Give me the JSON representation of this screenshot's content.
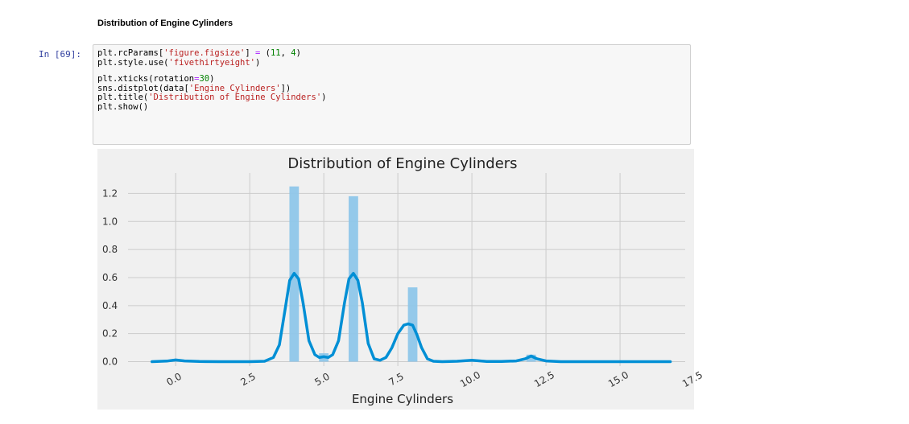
{
  "notebook": {
    "markdown_heading": "Distribution of Engine Cylinders",
    "prompt": "In [69]:",
    "code_lines": [
      [
        {
          "t": "plt.rcParams["
        },
        {
          "t": "'figure.figsize'",
          "c": "s"
        },
        {
          "t": "] "
        },
        {
          "t": "=",
          "c": "o"
        },
        {
          "t": " ("
        },
        {
          "t": "11",
          "c": "n"
        },
        {
          "t": ", "
        },
        {
          "t": "4",
          "c": "n"
        },
        {
          "t": ")"
        }
      ],
      [
        {
          "t": "plt.style.use("
        },
        {
          "t": "'fivethirtyeight'",
          "c": "s"
        },
        {
          "t": ")"
        }
      ],
      [],
      [
        {
          "t": "plt.xticks(rotation"
        },
        {
          "t": "=",
          "c": "o"
        },
        {
          "t": "30",
          "c": "n"
        },
        {
          "t": ")"
        }
      ],
      [
        {
          "t": "sns.distplot(data["
        },
        {
          "t": "'Engine Cylinders'",
          "c": "s"
        },
        {
          "t": "])"
        }
      ],
      [
        {
          "t": "plt.title("
        },
        {
          "t": "'Distribution of Engine Cylinders'",
          "c": "s"
        },
        {
          "t": ")"
        }
      ],
      [
        {
          "t": "plt.show()"
        }
      ]
    ]
  },
  "colors": {
    "prompt": "#303f9f",
    "code_bg": "#f7f7f7",
    "plot_bg": "#f0f0f0",
    "grid": "#cbcbcb",
    "bar": "#8ec6e9",
    "kde_line": "#008fd5"
  },
  "chart_data": {
    "type": "bar",
    "title": "Distribution of Engine Cylinders",
    "xlabel": "Engine Cylinders",
    "ylabel": "",
    "xlim": [
      -1.5,
      17.2
    ],
    "ylim": [
      -0.02,
      1.3
    ],
    "xticks": [
      0.0,
      2.5,
      5.0,
      7.5,
      10.0,
      12.5,
      15.0,
      17.5
    ],
    "xtick_labels": [
      "0.0",
      "2.5",
      "5.0",
      "7.5",
      "10.0",
      "12.5",
      "15.0",
      "17.5"
    ],
    "xtick_rotation": 30,
    "yticks": [
      0.0,
      0.2,
      0.4,
      0.6,
      0.8,
      1.0,
      1.2
    ],
    "ytick_labels": [
      "0.0",
      "0.2",
      "0.4",
      "0.6",
      "0.8",
      "1.0",
      "1.2"
    ],
    "grid": true,
    "histogram": {
      "bin_width": 0.32,
      "bins": [
        {
          "x": 0.0,
          "value": 0.005
        },
        {
          "x": 4.0,
          "value": 1.25
        },
        {
          "x": 5.0,
          "value": 0.06
        },
        {
          "x": 6.0,
          "value": 1.18
        },
        {
          "x": 8.0,
          "value": 0.53
        },
        {
          "x": 10.0,
          "value": 0.005
        },
        {
          "x": 12.0,
          "value": 0.05
        },
        {
          "x": 16.0,
          "value": 0.003
        }
      ]
    },
    "kde": {
      "x": [
        -0.8,
        -0.3,
        0.0,
        0.3,
        0.8,
        1.5,
        2.5,
        3.0,
        3.3,
        3.5,
        3.7,
        3.85,
        4.0,
        4.15,
        4.3,
        4.5,
        4.7,
        4.85,
        5.0,
        5.15,
        5.3,
        5.5,
        5.7,
        5.85,
        6.0,
        6.15,
        6.3,
        6.5,
        6.7,
        6.9,
        7.1,
        7.3,
        7.5,
        7.7,
        7.85,
        8.0,
        8.15,
        8.3,
        8.5,
        8.7,
        9.0,
        9.5,
        10.0,
        10.5,
        11.0,
        11.5,
        11.8,
        12.0,
        12.2,
        12.5,
        13.0,
        14.0,
        15.0,
        16.0,
        16.7
      ],
      "y": [
        0.0,
        0.004,
        0.012,
        0.005,
        0.001,
        0.0,
        0.0,
        0.003,
        0.03,
        0.12,
        0.38,
        0.58,
        0.63,
        0.59,
        0.42,
        0.15,
        0.05,
        0.03,
        0.035,
        0.03,
        0.05,
        0.15,
        0.42,
        0.59,
        0.63,
        0.58,
        0.42,
        0.13,
        0.02,
        0.01,
        0.03,
        0.1,
        0.2,
        0.26,
        0.27,
        0.26,
        0.19,
        0.1,
        0.02,
        0.003,
        0.0,
        0.003,
        0.01,
        0.002,
        0.001,
        0.005,
        0.02,
        0.04,
        0.02,
        0.005,
        0.0,
        0.0,
        0.0,
        0.0,
        0.0
      ]
    }
  }
}
